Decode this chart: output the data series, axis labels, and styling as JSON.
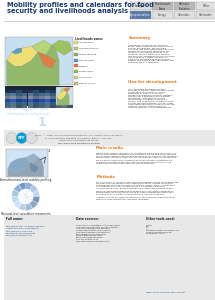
{
  "title_line1": "Mobility profiles and calendars for food",
  "title_line2": "security and livelihoods analysis",
  "title_color": "#1a3a6b",
  "title_fontsize": 4.8,
  "bg_color": "#ffffff",
  "tags_row1": [
    "Senegal",
    "Transhumant\nAreas",
    "National\nStatistics",
    "Other"
  ],
  "tags_row2": [
    "Agropastoralism",
    "Energy",
    "Calendars",
    "Vulnerable"
  ],
  "section_summary_title": "Summary",
  "section_orange": "#e07818",
  "section_summary_text": "Senegal has a number of livelihood\nzones, where pastoralism, agriculture or\nfishing, for example, are the main\nactivities. We have developed statistical\nmeasures for mobility profiling in the\ncontext of the livelihood zones and\nseasonal activity patterns of Senegal.\nThe mobility information at the livelihood\nlevel has been packed into mobility\ncalendars accessible for food security\nexperts and aligned with agricultural and\nseasonal activity calendars.",
  "section_use_title": "Use for development",
  "section_use_text": "For vulnerable population groups,\nchanges in mobility patterns can indicate\na change in livelihoods or coping\nstrategies as a result of shocks.\nMonitoring changes in mobility patterns\ncan thus be a powerful early warning\nmechanism. Statistics also in the\nmovements of different population\ngroups, and in particular deviations from\nnormal seasonal patterns, can be a new\nquantitative dimension of analysis for the\nSeasonal Monitor reports used for\ndecision making in crisis management.",
  "section_main_title": "Main results",
  "section_main_text": "We have developed a methodology to establish a baseline quantification of\nthe mobility patterns related to livelihood areas for the year 2013. We show\nthat different regions of the country exhibit mobility patterns that change by\nseason, and illustrate the effects of particular known events on movements.\n\nWe have implemented an interactive online dashboard to prototype the\nmigration calendars at livelihood and arrondissement level that can be\naligned and compared with seasonal activity calendars.",
  "section_method_title": "Methods",
  "section_method_text": "For each of the 13 livelihood zones and arrondissements, we have segmented\nthe population according to their year-wide mobility clusters, identifying\nsub-populations during the year into mobility classes. Each class has been\ncharacterised by E-SIM. For each month t, E-SIM uses a matrix of\noutflows and in-flows, based on the monthly movement of phone holders.\n\nWe have computed aggregated population data: movements between all\narrondissements at national level and we have characterised populations\naccording to environments and/or livelihood condition calendars.\n\nAnalysis function of different geographical and seasonal necessities using\nremote sensing information have been calculated.",
  "livelihoods_title": "Livelihoods zones",
  "legend_items": [
    [
      "#f5de67",
      "Agropastoral"
    ],
    [
      "#b5d46a",
      "Groundnut basin"
    ],
    [
      "#8db55a",
      "Mixed farming"
    ],
    [
      "#4b9cd3",
      "Fishing coast"
    ],
    [
      "#e87840",
      "Pastoral"
    ],
    [
      "#98c050",
      "Forest agric"
    ],
    [
      "#c8d898",
      "Rice valley"
    ],
    [
      "#dbb870",
      "Peanut cotton"
    ]
  ],
  "subgroup_label": "Population subgroup with similar\nmobility behavior during the year",
  "subgroup_number": "1",
  "citation_text": "Photo: © Author, Social Pattern Econometrics, Lyon, Christy Alberta W, Baxter\nB. AFM Innovation Statistics (circulation), Blane L. Thornton\nUniversitary Publications du Monde",
  "wfp_url": "WFP World Food Programme Senegal",
  "footer_col1_title": "Full name:",
  "footer_col1_text": "http://www.cirm.ird.fr/WFP-Senegal\n\nInteractive data visualization:\nhttp://mobility.cirm.ird.fr\nhttp://www.qgis.org/en/site\nhttp://www.r-project.org",
  "data_sources_title": "Data sources:",
  "data_sources_text": "2000-2014, 5 operators in the same zone\nAnonymised CDR from Orange Senegal\nFAO-WFP Senegal crop and food\nsupply assessment 2015 (report)\nFAO-WFP Senegal crop and food\nhttp://www.fao.org/giews/en/\nsupply assessment 2015\nhttps://reliefweb.int/report\nFAO-IPC Report 2014\nWFP internal market data; WFP",
  "other_tools_title": "Other tools used:",
  "other_tools_text": "R-lang\nGIS\ncd\ncd\nSoftware: Sweaving Processing\nShape data provided by:\nPopulation: 14.3k",
  "open_data": "Open: Data available upon request",
  "national_label": "National-level population movements",
  "arrond_label": "Arrondissement-level mobility profiling",
  "wfp_color": "#009edb",
  "tag_gray": "#b8b8b8",
  "tag_light": "#e0e0e0",
  "tag_blue": "#5878a8",
  "footer_bg": "#e8e8e8",
  "divider_color": "#aaaaaa"
}
